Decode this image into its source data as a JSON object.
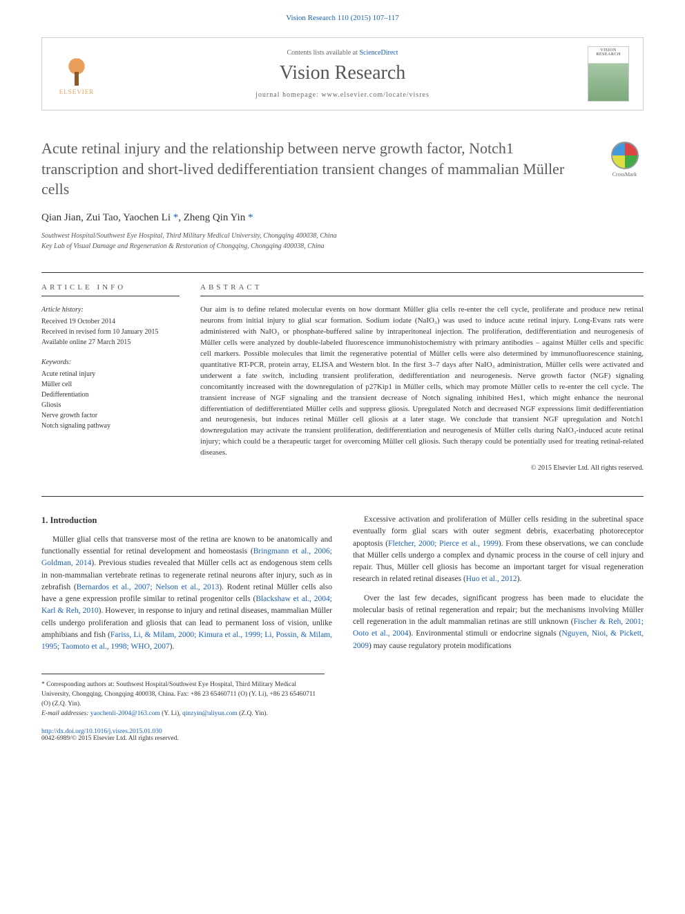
{
  "header": {
    "journal_ref": "Vision Research 110 (2015) 107–117",
    "contents_prefix": "Contents lists available at ",
    "contents_link": "ScienceDirect",
    "journal_name": "Vision Research",
    "homepage_prefix": "journal homepage: ",
    "homepage_url": "www.elsevier.com/locate/visres",
    "elsevier_label": "ELSEVIER",
    "cover_label": "VISION RESEARCH"
  },
  "article": {
    "title": "Acute retinal injury and the relationship between nerve growth factor, Notch1 transcription and short-lived dedifferentiation transient changes of mammalian Müller cells",
    "crossmark": "CrossMark",
    "authors_html": "Qian Jian, Zui Tao, Yaochen Li *, Zheng Qin Yin *",
    "affiliations": [
      "Southwest Hospital/Southwest Eye Hospital, Third Military Medical University, Chongqing 400038, China",
      "Key Lab of Visual Damage and Regeneration & Restoration of Chongqing, Chongqing 400038, China"
    ]
  },
  "info": {
    "heading": "ARTICLE INFO",
    "history_label": "Article history:",
    "history": [
      "Received 19 October 2014",
      "Received in revised form 10 January 2015",
      "Available online 27 March 2015"
    ],
    "keywords_label": "Keywords:",
    "keywords": [
      "Acute retinal injury",
      "Müller cell",
      "Dedifferentiation",
      "Gliosis",
      "Nerve growth factor",
      "Notch signaling pathway"
    ]
  },
  "abstract": {
    "heading": "ABSTRACT",
    "text": "Our aim is to define related molecular events on how dormant Müller glia cells re-enter the cell cycle, proliferate and produce new retinal neurons from initial injury to glial scar formation. Sodium iodate (NaIO₃) was used to induce acute retinal injury. Long-Evans rats were administered with NaIO₃ or phosphate-buffered saline by intraperitoneal injection. The proliferation, dedifferentiation and neurogenesis of Müller cells were analyzed by double-labeled fluorescence immunohistochemistry with primary antibodies – against Müller cells and specific cell markers. Possible molecules that limit the regenerative potential of Müller cells were also determined by immunofluorescence staining, quantitative RT-PCR, protein array, ELISA and Western blot. In the first 3–7 days after NaIO₃ administration, Müller cells were activated and underwent a fate switch, including transient proliferation, dedifferentiation and neurogenesis. Nerve growth factor (NGF) signaling concomitantly increased with the downregulation of p27Kip1 in Müller cells, which may promote Müller cells to re-enter the cell cycle. The transient increase of NGF signaling and the transient decrease of Notch signaling inhibited Hes1, which might enhance the neuronal differentiation of dedifferentiated Müller cells and suppress gliosis. Upregulated Notch and decreased NGF expressions limit dedifferentiation and neurogenesis, but induces retinal Müller cell gliosis at a later stage. We conclude that transient NGF upregulation and Notch1 downregulation may activate the transient proliferation, dedifferentiation and neurogenesis of Müller cells during NaIO₃-induced acute retinal injury; which could be a therapeutic target for overcoming Müller cell gliosis. Such therapy could be potentially used for treating retinal-related diseases.",
    "copyright": "© 2015 Elsevier Ltd. All rights reserved."
  },
  "body": {
    "intro_heading": "1. Introduction",
    "p1a": "Müller glial cells that transverse most of the retina are known to be anatomically and functionally essential for retinal development and homeostasis (",
    "p1_cite1": "Bringmann et al., 2006; Goldman, 2014",
    "p1b": "). Previous studies revealed that Müller cells act as endogenous stem cells in non-mammalian vertebrate retinas to regenerate retinal neurons after injury, such as in zebrafish (",
    "p1_cite2": "Bernardos et al., 2007; Nelson et al., 2013",
    "p1c": "). Rodent retinal Müller cells also have a gene expression profile similar to retinal progenitor cells (",
    "p1_cite3": "Blackshaw et al., 2004; Karl & Reh, 2010",
    "p1d": "). However, in response to injury and retinal diseases, mammalian Müller cells undergo proliferation ",
    "p1e": "and gliosis that can lead to permanent loss of vision, unlike amphibians and fish (",
    "p1_cite4": "Fariss, Li, & Milam, 2000; Kimura et al., 1999; Li, Possin, & Milam, 1995; Taomoto et al., 1998; WHO, 2007",
    "p1f": ").",
    "p2a": "Excessive activation and proliferation of Müller cells residing in the subretinal space eventually form glial scars with outer segment debris, exacerbating photoreceptor apoptosis (",
    "p2_cite1": "Fletcher, 2000; Pierce et al., 1999",
    "p2b": "). From these observations, we can conclude that Müller cells undergo a complex and dynamic process in the course of cell injury and repair. Thus, Müller cell gliosis has become an important target for visual regeneration research in related retinal diseases (",
    "p2_cite2": "Huo et al., 2012",
    "p2c": ").",
    "p3a": "Over the last few decades, significant progress has been made to elucidate the molecular basis of retinal regeneration and repair; but the mechanisms involving Müller cell regeneration in the adult mammalian retinas are still unknown (",
    "p3_cite1": "Fischer & Reh, 2001; Ooto et al., 2004",
    "p3b": "). Environmental stimuli or endocrine signals (",
    "p3_cite2": "Nguyen, Nioi, & Pickett, 2009",
    "p3c": ") may cause regulatory protein modifications"
  },
  "footnotes": {
    "corresponding": "* Corresponding authors at: Southwest Hospital/Southwest Eye Hospital, Third Military Medical University, Chongqing, Chongqing 400038, China. Fax: +86 23 65460711 (O) (Y. Li), +86 23 65460711 (O) (Z.Q. Yin).",
    "email_label": "E-mail addresses: ",
    "email1": "yaochenli-2004@163.com",
    "email1_name": " (Y. Li), ",
    "email2": "qinzyin@aliyun.com",
    "email2_name": " (Z.Q. Yin)."
  },
  "footer": {
    "doi": "http://dx.doi.org/10.1016/j.visres.2015.01.030",
    "issn": "0042-6989/© 2015 Elsevier Ltd. All rights reserved."
  },
  "colors": {
    "link": "#1a5fb4",
    "text": "#333333",
    "heading": "#5a5a5a",
    "border": "#cccccc"
  }
}
